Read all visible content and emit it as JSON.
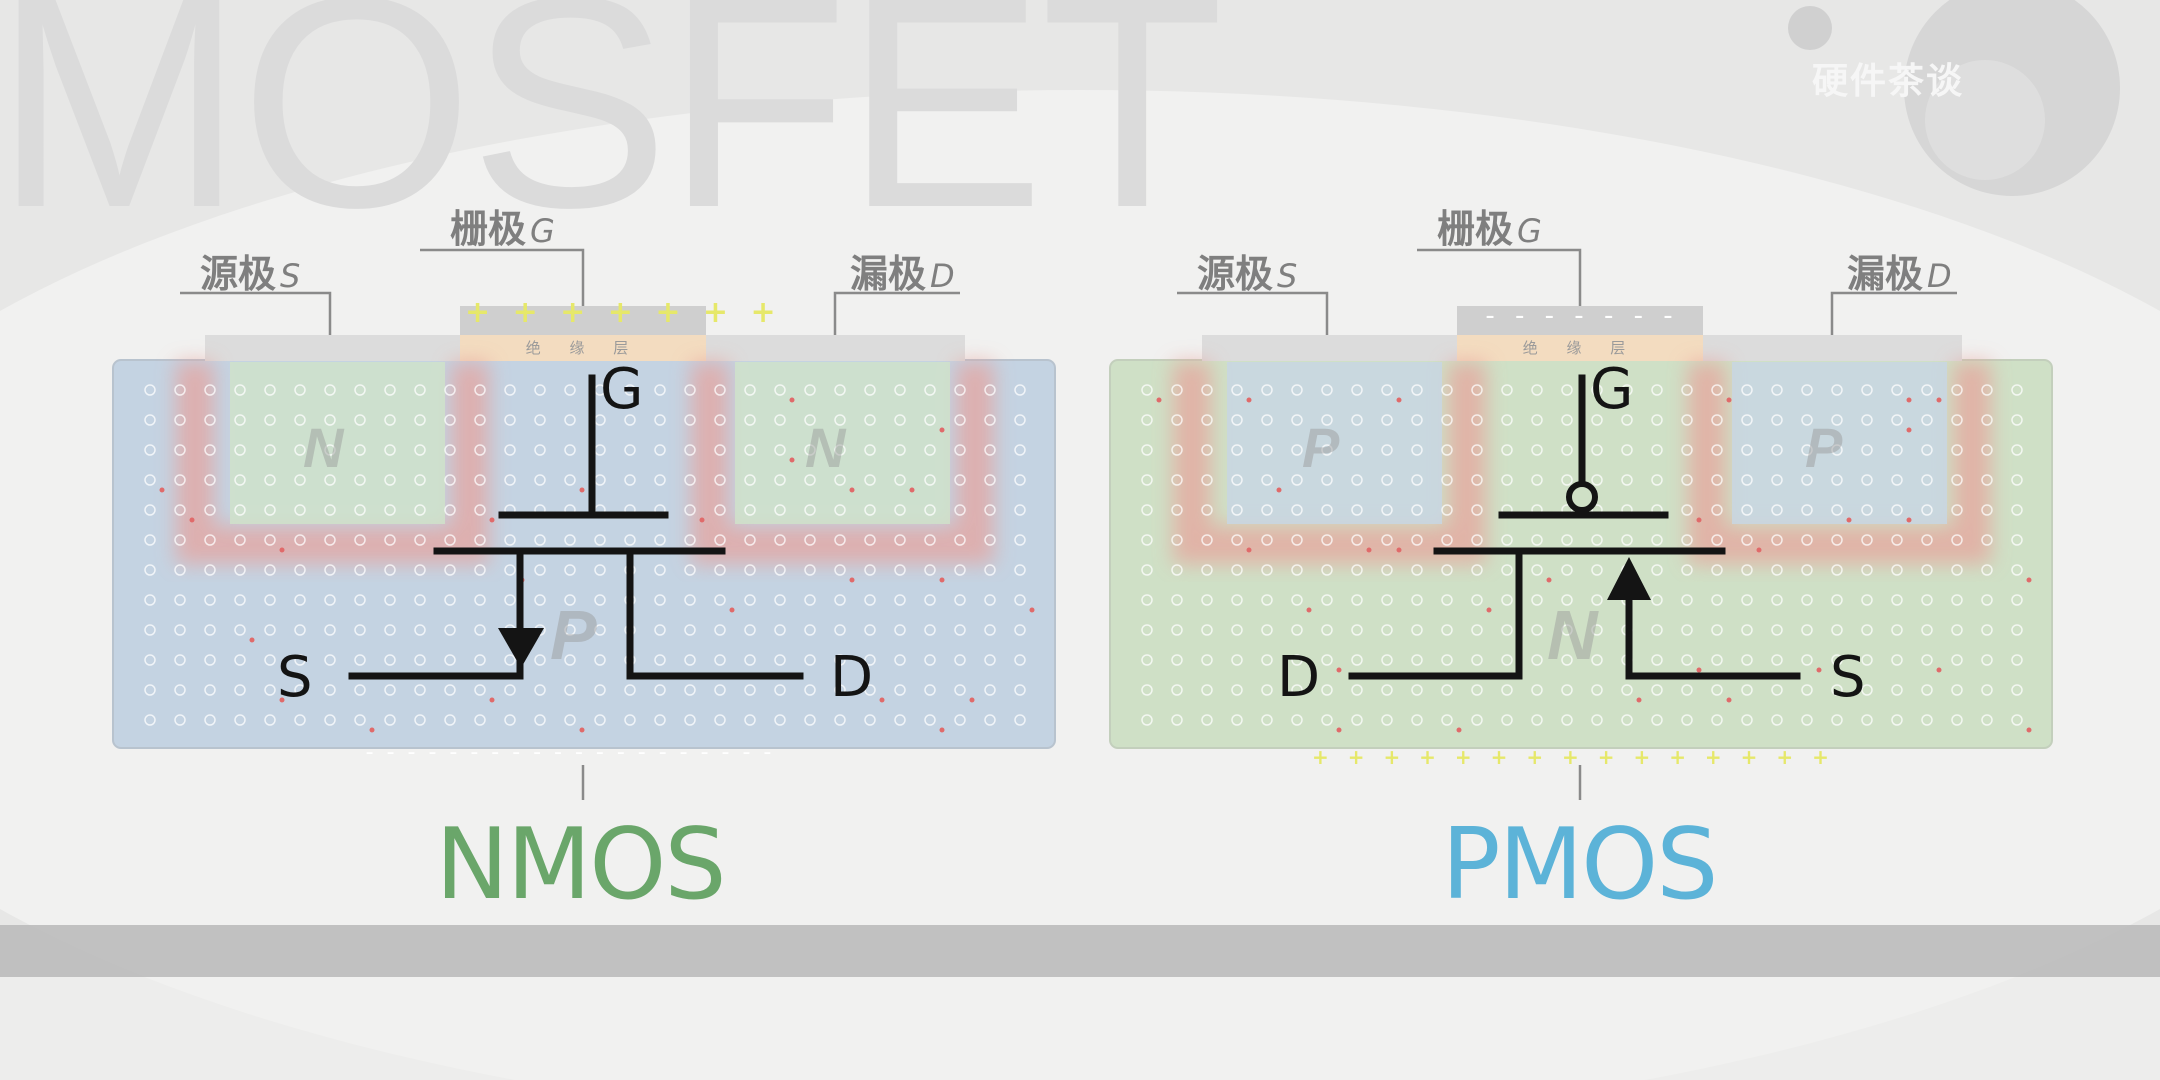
{
  "background_title": "MOSFET",
  "brand": "硬件茶谈",
  "colors": {
    "nmos_title": "#6aa66a",
    "pmos_title": "#5cb3d8",
    "nmos_substrate": "#c4d3e2",
    "pmos_substrate": "#cfe0c6",
    "diffusion_glow": "#e8a09a"
  },
  "nmos": {
    "title": "NMOS",
    "labels": {
      "source_zh": "源极",
      "source_letter": "S",
      "gate_zh": "栅极",
      "gate_letter": "G",
      "drain_zh": "漏极",
      "drain_letter": "D"
    },
    "insulator": "绝 缘 层",
    "gate_charge": "+ + + + + + +",
    "bottom_charge": "- - - - - - - - - - - - - - - - - - - -",
    "well_left": "N",
    "well_right": "N",
    "substrate": "P",
    "symbol": {
      "gate": "G",
      "left": "S",
      "right": "D"
    }
  },
  "pmos": {
    "title": "PMOS",
    "labels": {
      "source_zh": "源极",
      "source_letter": "S",
      "gate_zh": "栅极",
      "gate_letter": "G",
      "drain_zh": "漏极",
      "drain_letter": "D"
    },
    "insulator": "绝 缘 层",
    "gate_charge": "- - - - - - -",
    "bottom_charge": "+ + + + + + + + + + + + + + +",
    "well_left": "P",
    "well_right": "P",
    "substrate": "N",
    "symbol": {
      "gate": "G",
      "left": "D",
      "right": "S"
    }
  }
}
